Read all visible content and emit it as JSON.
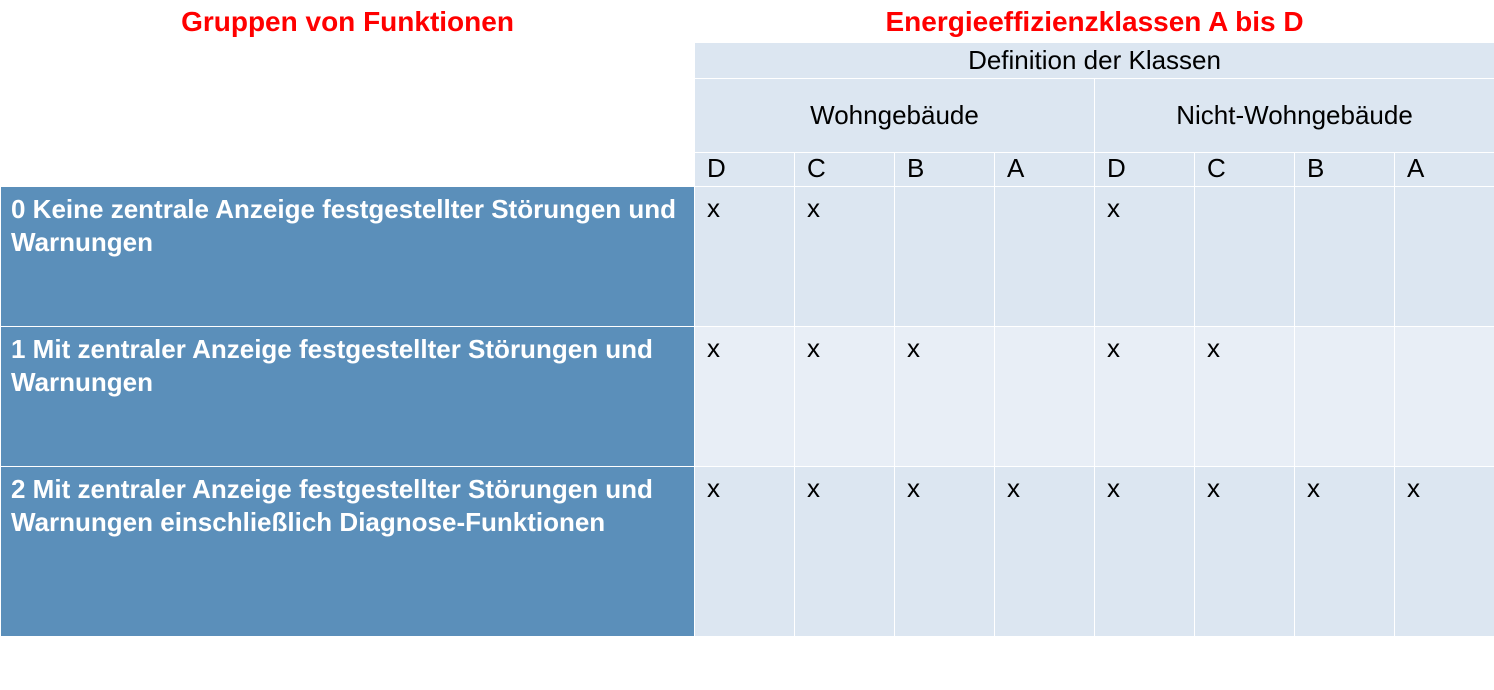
{
  "titles": {
    "left": "Gruppen von Funktionen",
    "right": "Energieeffizienzklassen A bis D"
  },
  "subheaders": {
    "definition": "Definition der Klassen",
    "residential": "Wohngebäude",
    "nonresidential": "Nicht-Wohngebäude"
  },
  "class_labels": [
    "D",
    "C",
    "B",
    "A",
    "D",
    "C",
    "B",
    "A"
  ],
  "rows": [
    {
      "label": "0 Keine zentrale Anzeige festgestellter Störungen und Warnungen",
      "cells": [
        "x",
        "x",
        "",
        "",
        "x",
        "",
        "",
        ""
      ]
    },
    {
      "label": "1 Mit zentraler Anzeige festgestellter Störungen und Warnungen",
      "cells": [
        "x",
        "x",
        "x",
        "",
        "x",
        "x",
        "",
        ""
      ]
    },
    {
      "label": "2 Mit zentraler Anzeige festgestellter Störungen und Warnungen einschließlich Diagnose-Funktionen",
      "cells": [
        "x",
        "x",
        "x",
        "x",
        "x",
        "x",
        "x",
        "x"
      ]
    }
  ],
  "styling": {
    "title_color": "#ff0000",
    "header_bg": "#dce6f1",
    "header_bg_alt": "#e8eef6",
    "row_label_bg": "#5b8fba",
    "row_label_color": "#ffffff",
    "border_color": "#ffffff",
    "body_text_color": "#000000",
    "title_fontsize": 28,
    "body_fontsize": 26,
    "font_family": "Arial"
  }
}
